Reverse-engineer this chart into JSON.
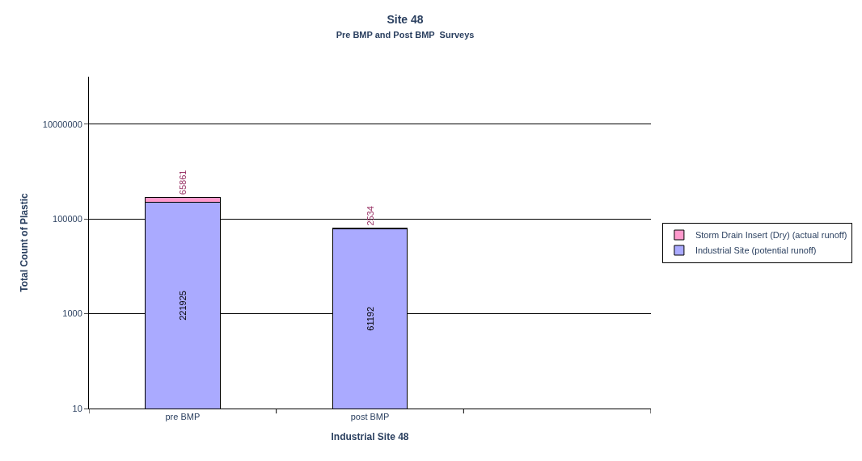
{
  "chart_data": {
    "type": "bar",
    "title": "Site 48",
    "subtitle": "Pre BMP and Post BMP  Surveys",
    "xlabel": "Industrial Site 48",
    "ylabel": "Total Count of Plastic",
    "categories": [
      "pre BMP",
      "post BMP",
      null
    ],
    "series": [
      {
        "name": "Industrial Site (potential runoff)",
        "color": "#aaaaff",
        "values": [
          221925,
          61192,
          null
        ]
      },
      {
        "name": "Storm Drain Insert (Dry) (actual runoff)",
        "color": "#ff99cc",
        "values": [
          65861,
          2534,
          null
        ]
      }
    ],
    "stacked": true,
    "log": true,
    "ylim": [
      10,
      100000000
    ],
    "yticks": [
      10,
      1000,
      100000,
      10000000
    ],
    "grid": "y",
    "legend": "right",
    "data_labels": true
  }
}
